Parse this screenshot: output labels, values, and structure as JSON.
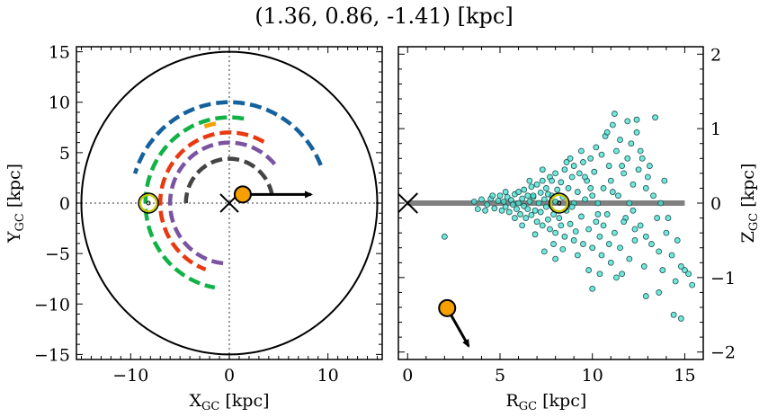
{
  "title": "(1.36, 0.86, -1.41) [kpc]",
  "chart_data": [
    {
      "type": "line",
      "panel": "left",
      "xlabel": "X",
      "xlabel_sub": "GC",
      "xlabel_unit": " [kpc]",
      "ylabel": "Y",
      "ylabel_sub": "GC",
      "ylabel_unit": " [kpc]",
      "xlim": [
        -15.5,
        15.5
      ],
      "ylim": [
        -15.5,
        15.5
      ],
      "xticks": [
        -10,
        0,
        10
      ],
      "xtick_labels": [
        "−10",
        "0",
        "10"
      ],
      "yticks": [
        -15,
        -10,
        -5,
        0,
        5,
        10,
        15
      ],
      "ytick_labels": [
        "−15",
        "−10",
        "−5",
        "0",
        "5",
        "10",
        "15"
      ],
      "boundary_radius": 15,
      "arcs": [
        {
          "color": "#14619e",
          "radius": 10.0,
          "start_deg": 22,
          "end_deg": 163
        },
        {
          "color": "#10b246",
          "radius": 8.5,
          "start_deg": 80,
          "end_deg": 260
        },
        {
          "color": "#f5a000",
          "radius": 8.0,
          "start_deg": 100,
          "end_deg": 112
        },
        {
          "color": "#e83a12",
          "radius": 7.0,
          "start_deg": 60,
          "end_deg": 250
        },
        {
          "color": "#7b54a0",
          "radius": 6.0,
          "start_deg": 40,
          "end_deg": 265
        },
        {
          "color": "#444444",
          "radius": 4.4,
          "start_deg": 10,
          "end_deg": 180
        }
      ],
      "sun_marker": {
        "x": -8.2,
        "y": 0.0
      },
      "galactic_center": {
        "x": 0,
        "y": 0
      },
      "object": {
        "x": 1.36,
        "y": 0.86,
        "color": "#f5a000"
      },
      "velocity_arrow": {
        "from": [
          1.36,
          0.86
        ],
        "to": [
          8.3,
          0.86
        ]
      }
    },
    {
      "type": "scatter",
      "panel": "right",
      "xlabel": "R",
      "xlabel_sub": "GC",
      "xlabel_unit": " [kpc]",
      "ylabel": "Z",
      "ylabel_sub": "GC",
      "ylabel_unit": " [kpc]",
      "xlim": [
        -0.5,
        16
      ],
      "ylim": [
        -2.1,
        2.1
      ],
      "xticks": [
        0,
        5,
        10,
        15
      ],
      "xtick_labels": [
        "0",
        "5",
        "10",
        "15"
      ],
      "yticks": [
        -2,
        -1,
        0,
        1,
        2
      ],
      "ytick_labels": [
        "−2",
        "−1",
        "0",
        "1",
        "2"
      ],
      "disk_line": {
        "x": [
          0,
          15
        ],
        "z": 0,
        "color": "#808080"
      },
      "galactic_center": {
        "x": 0,
        "y": 0
      },
      "sun_marker": {
        "x": 8.2,
        "y": 0.0
      },
      "object": {
        "x": 2.14,
        "y": -1.41,
        "color": "#f5a000"
      },
      "velocity_arrow": {
        "from": [
          2.14,
          -1.41
        ],
        "to": [
          3.3,
          -1.92
        ]
      },
      "point_color": "#40e0d0",
      "points": [
        [
          2.0,
          -0.45
        ],
        [
          3.8,
          -0.08
        ],
        [
          4.0,
          0.05
        ],
        [
          4.3,
          -0.02
        ],
        [
          4.5,
          0.06
        ],
        [
          4.7,
          -0.07
        ],
        [
          4.9,
          0.03
        ],
        [
          5.0,
          0.1
        ],
        [
          5.1,
          -0.1
        ],
        [
          5.2,
          0.02
        ],
        [
          5.3,
          -0.05
        ],
        [
          5.4,
          0.08
        ],
        [
          5.5,
          -0.12
        ],
        [
          5.6,
          0.04
        ],
        [
          5.7,
          -0.02
        ],
        [
          5.8,
          0.12
        ],
        [
          5.9,
          -0.08
        ],
        [
          6.0,
          0.0
        ],
        [
          6.0,
          0.15
        ],
        [
          6.1,
          -0.15
        ],
        [
          6.2,
          0.06
        ],
        [
          6.3,
          -0.04
        ],
        [
          6.3,
          0.18
        ],
        [
          6.4,
          -0.2
        ],
        [
          6.5,
          0.1
        ],
        [
          6.5,
          -0.08
        ],
        [
          6.6,
          0.02
        ],
        [
          6.7,
          0.22
        ],
        [
          6.7,
          -0.16
        ],
        [
          6.8,
          0.08
        ],
        [
          6.9,
          -0.1
        ],
        [
          7.0,
          0.25
        ],
        [
          7.0,
          -0.25
        ],
        [
          7.1,
          0.0
        ],
        [
          7.2,
          0.14
        ],
        [
          7.2,
          -0.12
        ],
        [
          7.3,
          0.3
        ],
        [
          7.3,
          -0.3
        ],
        [
          7.4,
          0.05
        ],
        [
          7.5,
          -0.05
        ],
        [
          7.5,
          0.2
        ],
        [
          7.6,
          -0.22
        ],
        [
          7.7,
          0.35
        ],
        [
          7.7,
          -0.35
        ],
        [
          7.8,
          0.1
        ],
        [
          7.9,
          -0.15
        ],
        [
          8.0,
          0.4
        ],
        [
          8.0,
          -0.4
        ],
        [
          8.0,
          0.02
        ],
        [
          8.1,
          0.18
        ],
        [
          8.2,
          -0.2
        ],
        [
          8.3,
          0.28
        ],
        [
          8.3,
          -0.3
        ],
        [
          8.4,
          0.08
        ],
        [
          8.5,
          0.45
        ],
        [
          8.5,
          -0.45
        ],
        [
          8.6,
          -0.1
        ],
        [
          8.7,
          0.2
        ],
        [
          8.8,
          -0.28
        ],
        [
          8.9,
          0.35
        ],
        [
          9.0,
          0.5
        ],
        [
          9.0,
          -0.5
        ],
        [
          9.0,
          0.0
        ],
        [
          9.1,
          -0.38
        ],
        [
          9.2,
          0.15
        ],
        [
          9.3,
          0.4
        ],
        [
          9.4,
          -0.18
        ],
        [
          9.5,
          0.55
        ],
        [
          9.5,
          -0.55
        ],
        [
          9.6,
          0.05
        ],
        [
          9.7,
          0.3
        ],
        [
          9.8,
          -0.35
        ],
        [
          9.9,
          0.6
        ],
        [
          10.0,
          -0.6
        ],
        [
          10.0,
          0.1
        ],
        [
          10.1,
          0.42
        ],
        [
          10.2,
          -0.25
        ],
        [
          10.2,
          0.75
        ],
        [
          10.3,
          0.0
        ],
        [
          10.4,
          -0.45
        ],
        [
          10.5,
          0.65
        ],
        [
          10.5,
          -0.7
        ],
        [
          10.6,
          0.2
        ],
        [
          10.7,
          0.9
        ],
        [
          10.8,
          -0.15
        ],
        [
          10.9,
          0.5
        ],
        [
          11.0,
          -0.8
        ],
        [
          11.0,
          0.3
        ],
        [
          11.1,
          1.05
        ],
        [
          11.2,
          -0.4
        ],
        [
          11.3,
          0.7
        ],
        [
          11.4,
          0.1
        ],
        [
          11.5,
          -0.6
        ],
        [
          11.5,
          0.85
        ],
        [
          11.6,
          -0.95
        ],
        [
          11.7,
          0.4
        ],
        [
          11.8,
          -0.2
        ],
        [
          11.9,
          0.6
        ],
        [
          12.0,
          0.0
        ],
        [
          12.0,
          -0.75
        ],
        [
          12.1,
          0.8
        ],
        [
          12.2,
          0.25
        ],
        [
          12.3,
          -0.5
        ],
        [
          12.4,
          0.95
        ],
        [
          12.5,
          0.45
        ],
        [
          12.6,
          -0.3
        ],
        [
          12.7,
          0.6
        ],
        [
          12.8,
          -0.85
        ],
        [
          12.9,
          0.2
        ],
        [
          13.0,
          0.35
        ],
        [
          13.2,
          -0.55
        ],
        [
          13.3,
          0.1
        ],
        [
          13.5,
          -0.2
        ],
        [
          13.6,
          -0.65
        ],
        [
          13.8,
          -0.9
        ],
        [
          14.0,
          -0.4
        ],
        [
          14.3,
          -0.7
        ],
        [
          14.5,
          -1.05
        ],
        [
          14.8,
          -0.85
        ],
        [
          15.0,
          -0.9
        ],
        [
          15.2,
          -0.95
        ],
        [
          15.4,
          -1.1
        ],
        [
          14.4,
          -1.5
        ],
        [
          14.8,
          -1.55
        ],
        [
          13.6,
          -1.2
        ],
        [
          12.9,
          -1.25
        ],
        [
          10.0,
          -1.15
        ],
        [
          11.2,
          1.2
        ],
        [
          13.4,
          1.15
        ],
        [
          6.8,
          0.1
        ],
        [
          7.6,
          0.12
        ],
        [
          8.8,
          0.6
        ],
        [
          9.4,
          0.7
        ],
        [
          10.8,
          0.95
        ],
        [
          11.9,
          1.1
        ],
        [
          12.4,
          1.12
        ],
        [
          9.8,
          -0.9
        ],
        [
          10.4,
          -0.95
        ],
        [
          11.3,
          -1.0
        ],
        [
          8.4,
          -0.62
        ],
        [
          7.9,
          -0.55
        ],
        [
          6.9,
          -0.42
        ],
        [
          7.3,
          0.45
        ],
        [
          8.6,
          0.55
        ],
        [
          10.6,
          -0.3
        ],
        [
          9.2,
          -0.7
        ],
        [
          12.2,
          -0.1
        ],
        [
          13.1,
          0.5
        ],
        [
          13.9,
          0.3
        ],
        [
          12.6,
          0.7
        ],
        [
          11.7,
          -0.25
        ],
        [
          10.9,
          -0.55
        ],
        [
          9.6,
          0.35
        ],
        [
          8.9,
          -0.05
        ],
        [
          7.8,
          0.3
        ],
        [
          6.6,
          0.3
        ],
        [
          6.2,
          -0.3
        ],
        [
          5.8,
          -0.2
        ],
        [
          5.3,
          0.15
        ],
        [
          4.6,
          0.1
        ],
        [
          4.2,
          -0.1
        ],
        [
          3.6,
          0.02
        ],
        [
          9.9,
          0.2
        ],
        [
          10.3,
          -0.15
        ],
        [
          11.1,
          0.15
        ],
        [
          11.6,
          0.5
        ],
        [
          12.3,
          -0.35
        ],
        [
          12.9,
          -0.45
        ],
        [
          13.7,
          0.0
        ],
        [
          14.1,
          -0.2
        ],
        [
          14.6,
          -0.5
        ],
        [
          8.0,
          -0.75
        ],
        [
          7.4,
          -0.65
        ]
      ]
    }
  ]
}
